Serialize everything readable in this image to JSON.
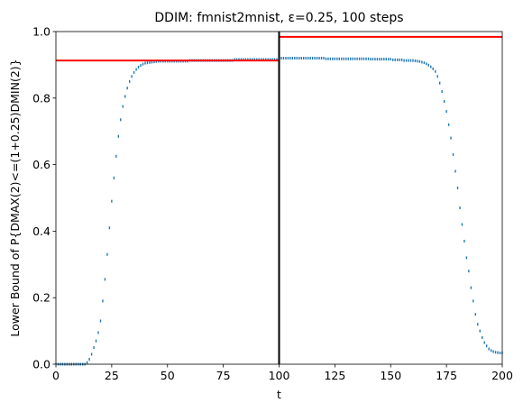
{
  "chart_data": {
    "type": "scatter",
    "title": "DDIM: fmnist2mnist, ε=0.25, 100 steps",
    "xlabel": "t",
    "ylabel": "Lower Bound of P{DMAX(2)<=(1+0.25)DMIN(2)}",
    "color": "#1f77b4",
    "xlim": [
      0,
      200
    ],
    "ylim": [
      0,
      1
    ],
    "xticks": [
      0,
      25,
      50,
      75,
      100,
      125,
      150,
      175,
      200
    ],
    "yticks": [
      {
        "value": 0,
        "label": "0.0"
      },
      0.2,
      0.4,
      0.6,
      0.8,
      {
        "value": 1,
        "label": "1.0"
      }
    ],
    "hlines": [
      {
        "y": 0.913,
        "xmin": 0,
        "xmax": 100,
        "color": "#ff0000"
      },
      {
        "y": 0.984,
        "xmin": 100,
        "xmax": 200,
        "color": "#ff0000"
      }
    ],
    "vlines": [
      {
        "x": 100,
        "color": "#000000"
      }
    ],
    "x": [
      0,
      1,
      2,
      3,
      4,
      5,
      6,
      7,
      8,
      9,
      10,
      11,
      12,
      13,
      14,
      15,
      16,
      17,
      18,
      19,
      20,
      21,
      22,
      23,
      24,
      25,
      26,
      27,
      28,
      29,
      30,
      31,
      32,
      33,
      34,
      35,
      36,
      37,
      38,
      39,
      40,
      41,
      42,
      43,
      44,
      45,
      46,
      47,
      48,
      49,
      50,
      51,
      52,
      53,
      54,
      55,
      56,
      57,
      58,
      59,
      60,
      61,
      62,
      63,
      64,
      65,
      66,
      67,
      68,
      69,
      70,
      71,
      72,
      73,
      74,
      75,
      76,
      77,
      78,
      79,
      80,
      81,
      82,
      83,
      84,
      85,
      86,
      87,
      88,
      89,
      90,
      91,
      92,
      93,
      94,
      95,
      96,
      97,
      98,
      99,
      100,
      101,
      102,
      103,
      104,
      105,
      106,
      107,
      108,
      109,
      110,
      111,
      112,
      113,
      114,
      115,
      116,
      117,
      118,
      119,
      120,
      121,
      122,
      123,
      124,
      125,
      126,
      127,
      128,
      129,
      130,
      131,
      132,
      133,
      134,
      135,
      136,
      137,
      138,
      139,
      140,
      141,
      142,
      143,
      144,
      145,
      146,
      147,
      148,
      149,
      150,
      151,
      152,
      153,
      154,
      155,
      156,
      157,
      158,
      159,
      160,
      161,
      162,
      163,
      164,
      165,
      166,
      167,
      168,
      169,
      170,
      171,
      172,
      173,
      174,
      175,
      176,
      177,
      178,
      179,
      180,
      181,
      182,
      183,
      184,
      185,
      186,
      187,
      188,
      189,
      190,
      191,
      192,
      193,
      194,
      195,
      196,
      197,
      198,
      199,
      200
    ],
    "values": [
      0,
      0,
      0,
      0,
      0,
      0,
      0,
      0,
      0,
      0,
      0,
      0,
      0,
      0,
      0.005,
      0.015,
      0.03,
      0.05,
      0.07,
      0.095,
      0.13,
      0.19,
      0.255,
      0.33,
      0.41,
      0.49,
      0.56,
      0.625,
      0.685,
      0.735,
      0.775,
      0.805,
      0.83,
      0.85,
      0.865,
      0.877,
      0.886,
      0.893,
      0.898,
      0.902,
      0.905,
      0.906,
      0.907,
      0.908,
      0.909,
      0.91,
      0.911,
      0.911,
      0.911,
      0.911,
      0.911,
      0.911,
      0.911,
      0.911,
      0.911,
      0.911,
      0.911,
      0.911,
      0.911,
      0.911,
      0.913,
      0.913,
      0.913,
      0.913,
      0.913,
      0.913,
      0.913,
      0.913,
      0.913,
      0.913,
      0.913,
      0.913,
      0.913,
      0.913,
      0.913,
      0.913,
      0.913,
      0.913,
      0.913,
      0.913,
      0.916,
      0.916,
      0.916,
      0.916,
      0.916,
      0.916,
      0.916,
      0.916,
      0.916,
      0.916,
      0.916,
      0.916,
      0.916,
      0.916,
      0.916,
      0.916,
      0.916,
      0.916,
      0.916,
      0.916,
      0.92,
      0.92,
      0.92,
      0.92,
      0.92,
      0.92,
      0.92,
      0.92,
      0.92,
      0.92,
      0.92,
      0.92,
      0.92,
      0.92,
      0.92,
      0.92,
      0.92,
      0.92,
      0.92,
      0.92,
      0.92,
      0.918,
      0.918,
      0.918,
      0.918,
      0.918,
      0.918,
      0.918,
      0.918,
      0.918,
      0.918,
      0.918,
      0.918,
      0.918,
      0.918,
      0.918,
      0.918,
      0.918,
      0.918,
      0.918,
      0.918,
      0.917,
      0.917,
      0.917,
      0.917,
      0.917,
      0.917,
      0.917,
      0.917,
      0.917,
      0.917,
      0.915,
      0.915,
      0.915,
      0.915,
      0.915,
      0.913,
      0.913,
      0.913,
      0.913,
      0.913,
      0.912,
      0.911,
      0.91,
      0.908,
      0.906,
      0.903,
      0.899,
      0.894,
      0.888,
      0.88,
      0.865,
      0.845,
      0.82,
      0.79,
      0.76,
      0.72,
      0.68,
      0.63,
      0.58,
      0.53,
      0.47,
      0.42,
      0.37,
      0.32,
      0.28,
      0.23,
      0.19,
      0.15,
      0.12,
      0.1,
      0.08,
      0.065,
      0.055,
      0.046,
      0.041,
      0.038,
      0.036,
      0.035,
      0.034,
      0.034
    ]
  }
}
